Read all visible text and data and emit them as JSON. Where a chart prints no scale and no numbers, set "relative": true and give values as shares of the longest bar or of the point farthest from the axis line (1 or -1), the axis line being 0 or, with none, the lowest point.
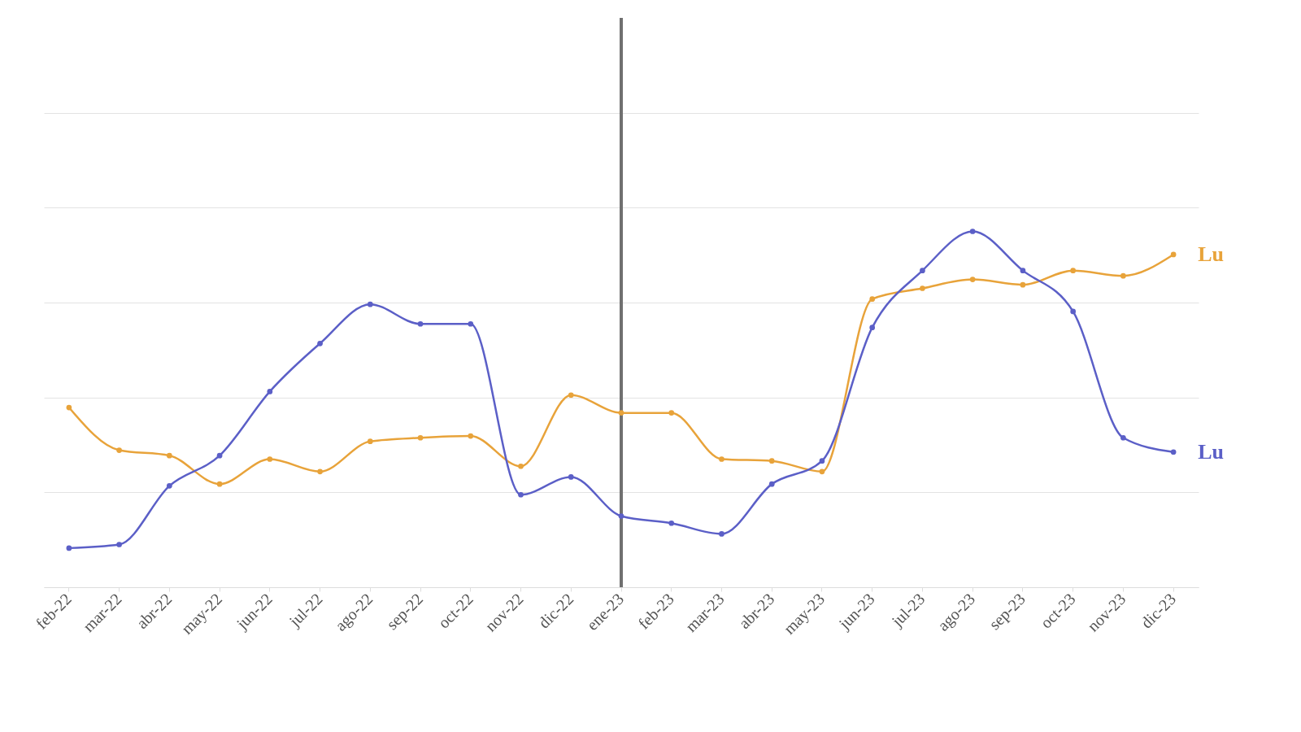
{
  "chart_data": {
    "type": "line",
    "relative": true,
    "grid": "y",
    "marker": "circle",
    "categories": [
      "feb-22",
      "mar-22",
      "abr-22",
      "may-22",
      "jun-22",
      "jul-22",
      "ago-22",
      "sep-22",
      "oct-22",
      "nov-22",
      "dic-22",
      "ene-23",
      "feb-23",
      "mar-23",
      "abr-23",
      "may-23",
      "jun-23",
      "jul-23",
      "ago-23",
      "sep-23",
      "oct-23",
      "nov-23",
      "dic-23"
    ],
    "series": [
      {
        "name": "Lu",
        "color": "#e8a33a",
        "values": [
          0.505,
          0.385,
          0.37,
          0.29,
          0.36,
          0.325,
          0.41,
          0.42,
          0.425,
          0.34,
          0.54,
          0.49,
          0.49,
          0.36,
          0.355,
          0.325,
          0.81,
          0.84,
          0.865,
          0.85,
          0.89,
          0.875,
          0.935
        ]
      },
      {
        "name": "Lu",
        "color": "#5b5fc7",
        "values": [
          0.11,
          0.12,
          0.285,
          0.37,
          0.55,
          0.685,
          0.795,
          0.74,
          0.74,
          0.26,
          0.31,
          0.2,
          0.18,
          0.15,
          0.29,
          0.355,
          0.73,
          0.89,
          1,
          0.89,
          0.775,
          0.42,
          0.38
        ]
      }
    ],
    "ref_lines": [
      {
        "axis": "x",
        "value": "ene-23",
        "color": "#707070"
      }
    ]
  }
}
